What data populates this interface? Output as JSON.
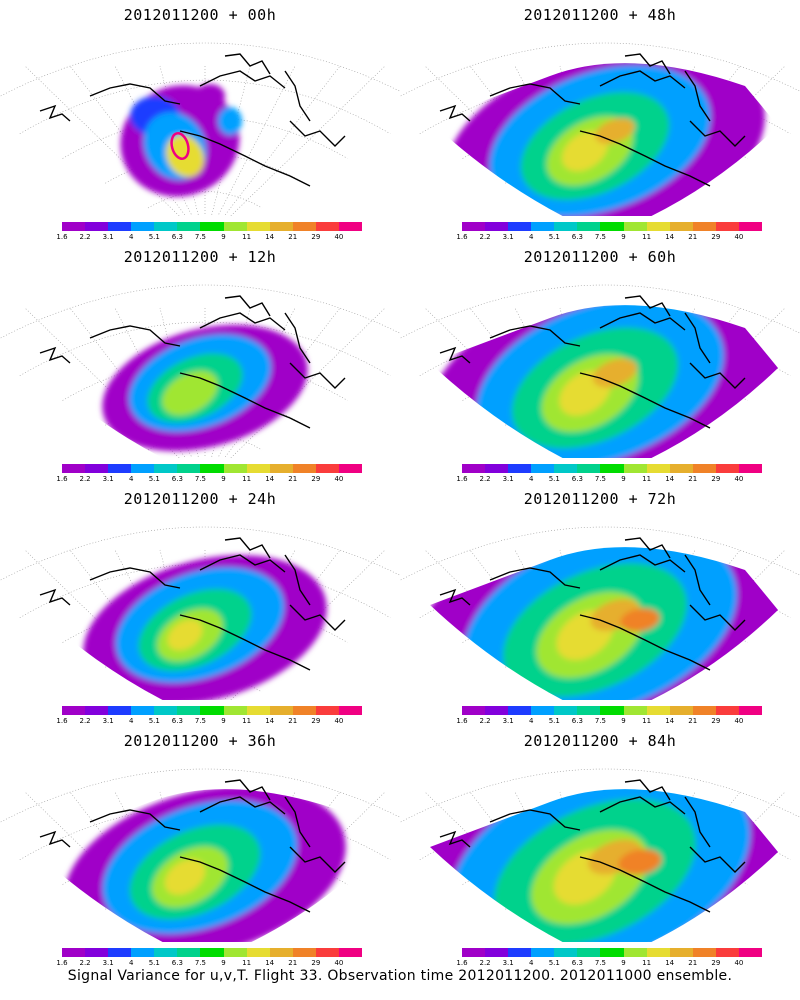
{
  "panels": [
    {
      "title": "2012011200 + 00h",
      "lead": 0
    },
    {
      "title": "2012011200 + 48h",
      "lead": 48
    },
    {
      "title": "2012011200 + 12h",
      "lead": 12
    },
    {
      "title": "2012011200 + 60h",
      "lead": 60
    },
    {
      "title": "2012011200 + 24h",
      "lead": 24
    },
    {
      "title": "2012011200 + 72h",
      "lead": 72
    },
    {
      "title": "2012011200 + 36h",
      "lead": 36
    },
    {
      "title": "2012011200 + 84h",
      "lead": 84
    }
  ],
  "colorbar": {
    "colors": [
      "#a000c8",
      "#8200dc",
      "#1e3cff",
      "#00a0ff",
      "#00c8c8",
      "#00d28c",
      "#00dc00",
      "#a0e632",
      "#e6dc32",
      "#e6af2d",
      "#f08228",
      "#fa3c3c",
      "#f00082"
    ],
    "labels": [
      "1.6",
      "2.2",
      "3.1",
      "4",
      "5.1",
      "6.3",
      "7.5",
      "9",
      "11",
      "14",
      "21",
      "29",
      "40"
    ]
  },
  "footer": "Signal Variance for u,v,T. Flight 33. Observation time 2012011200. 2012011000 ensemble."
}
